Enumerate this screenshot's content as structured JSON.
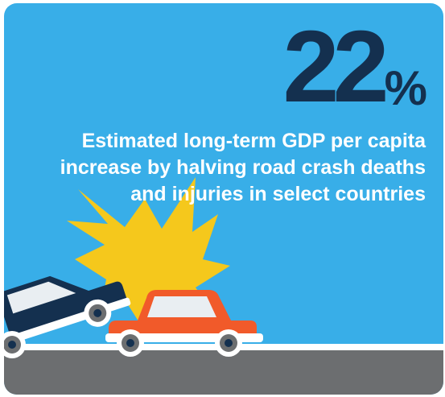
{
  "infographic": {
    "stat_number": "22",
    "stat_unit": "%",
    "description": "Estimated long-term GDP per capita increase by halving road crash deaths and injuries in select countries"
  },
  "illustration": {
    "icons": [
      "crash-burst-icon",
      "dark-car-icon",
      "red-car-icon"
    ]
  },
  "colors": {
    "background": "#38aee8",
    "stat": "#14304f",
    "description_text": "#ffffff",
    "road": "#6c6e70",
    "burst": "#f5c81c",
    "dark_car": "#14304f",
    "red_car": "#f15a2a"
  }
}
